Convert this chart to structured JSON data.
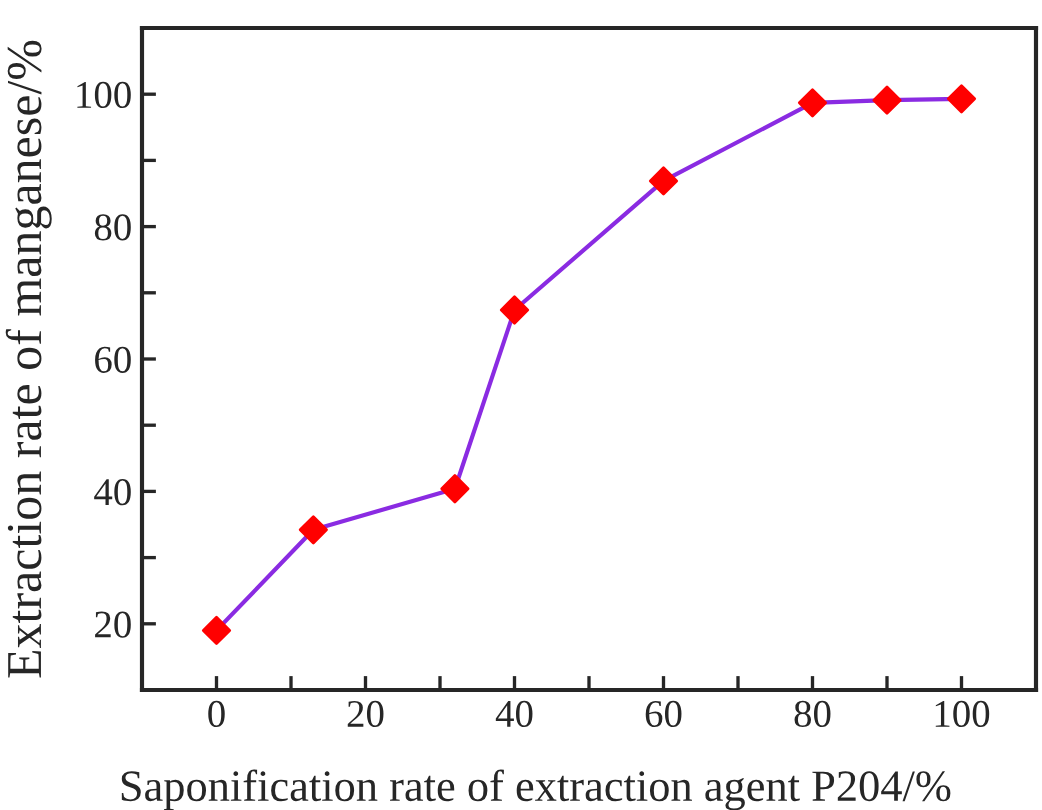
{
  "chart_data": {
    "type": "line",
    "xlabel": "Saponification rate of extraction agent P204/%",
    "ylabel": "Extraction rate of manganese/%",
    "x": [
      0,
      13,
      32,
      40,
      60,
      80,
      90,
      100
    ],
    "series": [
      {
        "color": "#8a2be2",
        "colors": [
          "#ff0000",
          "#ff0000",
          "#ff0000",
          "#ff0000",
          "#ff0000",
          "#ff0000",
          "#ff0000",
          "#ff0000"
        ],
        "values": [
          19.0,
          34.2,
          40.4,
          67.4,
          86.9,
          98.7,
          99.1,
          99.3
        ]
      }
    ],
    "marker": "diamond",
    "line_style": "solid",
    "grid": false,
    "legend": false,
    "xlim": [
      -10,
      110
    ],
    "ylim": [
      10,
      110
    ],
    "xticks": [
      0,
      {
        "value": 10,
        "label": null
      },
      20,
      {
        "value": 30,
        "label": null
      },
      40,
      {
        "value": 50,
        "label": null
      },
      60,
      {
        "value": 70,
        "label": null
      },
      80,
      {
        "value": 90,
        "label": null
      },
      100
    ],
    "yticks": [
      20,
      {
        "value": 30,
        "label": null
      },
      40,
      {
        "value": 50,
        "label": null
      },
      60,
      {
        "value": 70,
        "label": null
      },
      80,
      {
        "value": 90,
        "label": null
      },
      100
    ]
  }
}
